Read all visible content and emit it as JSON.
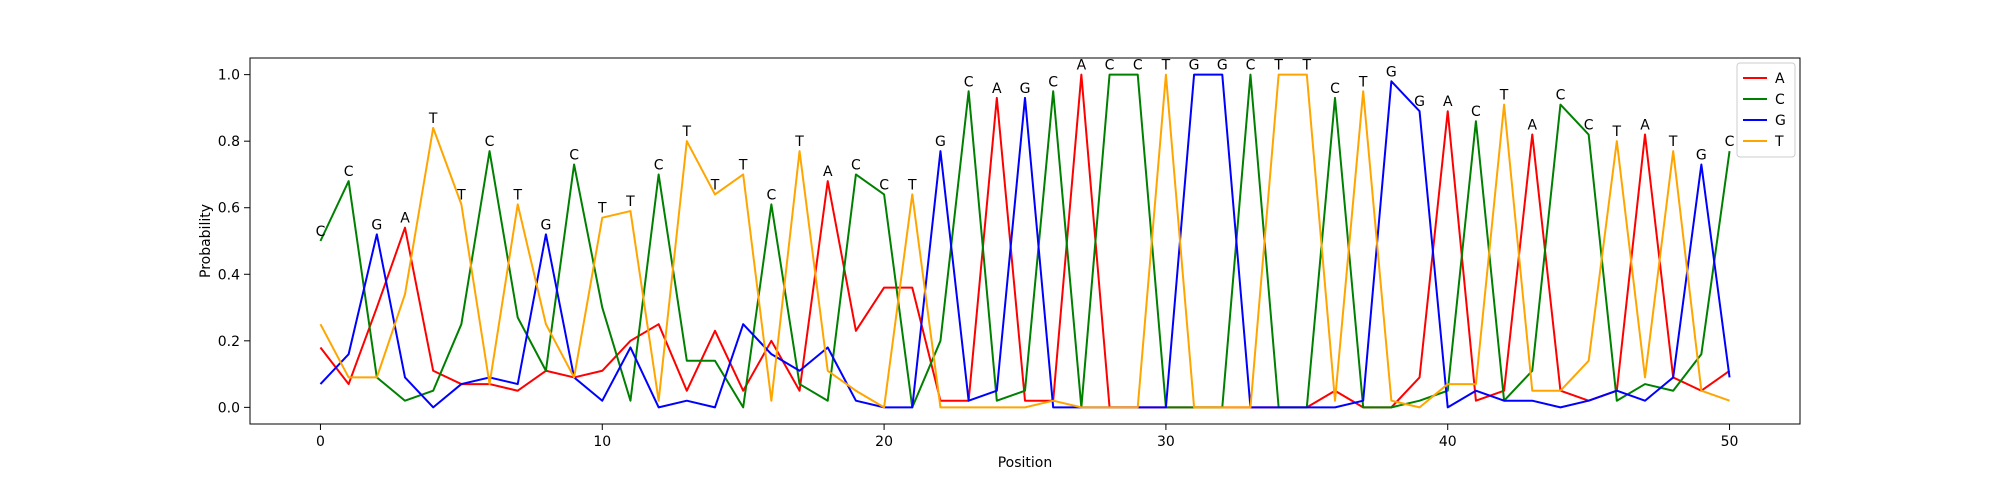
{
  "chart_data": {
    "type": "line",
    "title": "",
    "xlabel": "Position",
    "ylabel": "Probability",
    "xlim": [
      -2.5,
      52.5
    ],
    "ylim": [
      -0.05,
      1.05
    ],
    "xticks": [
      0,
      10,
      20,
      30,
      40,
      50
    ],
    "yticks": [
      0.0,
      0.2,
      0.4,
      0.6,
      0.8,
      1.0
    ],
    "ytick_labels": [
      "0.0",
      "0.2",
      "0.4",
      "0.6",
      "0.8",
      "1.0"
    ],
    "grid": false,
    "legend_position": "top-right",
    "x": [
      0,
      1,
      2,
      3,
      4,
      5,
      6,
      7,
      8,
      9,
      10,
      11,
      12,
      13,
      14,
      15,
      16,
      17,
      18,
      19,
      20,
      21,
      22,
      23,
      24,
      25,
      26,
      27,
      28,
      29,
      30,
      31,
      32,
      33,
      34,
      35,
      36,
      37,
      38,
      39,
      40,
      41,
      42,
      43,
      44,
      45,
      46,
      47,
      48,
      49,
      50
    ],
    "series": [
      {
        "name": "A",
        "color": "#ff0000",
        "values": [
          0.18,
          0.07,
          0.3,
          0.54,
          0.11,
          0.07,
          0.07,
          0.05,
          0.11,
          0.09,
          0.11,
          0.2,
          0.25,
          0.05,
          0.23,
          0.05,
          0.2,
          0.05,
          0.68,
          0.23,
          0.36,
          0.36,
          0.02,
          0.02,
          0.93,
          0.02,
          0.02,
          1.0,
          0.0,
          0.0,
          0.0,
          0.0,
          0.0,
          0.0,
          0.0,
          0.0,
          0.05,
          0.0,
          0.0,
          0.09,
          0.89,
          0.02,
          0.05,
          0.82,
          0.05,
          0.02,
          0.05,
          0.82,
          0.09,
          0.05,
          0.11
        ]
      },
      {
        "name": "C",
        "color": "#008000",
        "values": [
          0.5,
          0.68,
          0.09,
          0.02,
          0.05,
          0.25,
          0.77,
          0.27,
          0.11,
          0.73,
          0.3,
          0.02,
          0.7,
          0.14,
          0.14,
          0.0,
          0.61,
          0.07,
          0.02,
          0.7,
          0.64,
          0.0,
          0.2,
          0.95,
          0.02,
          0.05,
          0.95,
          0.0,
          1.0,
          1.0,
          0.0,
          0.0,
          0.0,
          1.0,
          0.0,
          0.0,
          0.93,
          0.0,
          0.0,
          0.02,
          0.05,
          0.86,
          0.02,
          0.11,
          0.91,
          0.82,
          0.02,
          0.07,
          0.05,
          0.16,
          0.77
        ]
      },
      {
        "name": "G",
        "color": "#0000ff",
        "values": [
          0.07,
          0.16,
          0.52,
          0.09,
          0.0,
          0.07,
          0.09,
          0.07,
          0.52,
          0.09,
          0.02,
          0.18,
          0.0,
          0.02,
          0.0,
          0.25,
          0.16,
          0.11,
          0.18,
          0.02,
          0.0,
          0.0,
          0.77,
          0.02,
          0.05,
          0.93,
          0.0,
          0.0,
          0.0,
          0.0,
          0.0,
          1.0,
          1.0,
          0.0,
          0.0,
          0.0,
          0.0,
          0.02,
          0.98,
          0.89,
          0.0,
          0.05,
          0.02,
          0.02,
          0.0,
          0.02,
          0.05,
          0.02,
          0.09,
          0.73,
          0.09
        ]
      },
      {
        "name": "T",
        "color": "#ffa500",
        "values": [
          0.25,
          0.09,
          0.09,
          0.34,
          0.84,
          0.61,
          0.07,
          0.61,
          0.25,
          0.09,
          0.57,
          0.59,
          0.02,
          0.8,
          0.64,
          0.7,
          0.02,
          0.77,
          0.11,
          0.05,
          0.0,
          0.64,
          0.0,
          0.0,
          0.0,
          0.0,
          0.02,
          0.0,
          0.0,
          0.0,
          1.0,
          0.0,
          0.0,
          0.0,
          1.0,
          1.0,
          0.02,
          0.95,
          0.02,
          0.0,
          0.07,
          0.07,
          0.91,
          0.05,
          0.05,
          0.14,
          0.8,
          0.09,
          0.77,
          0.05,
          0.02
        ]
      }
    ],
    "peak_labels": [
      "C",
      "C",
      "G",
      "A",
      "T",
      "T",
      "C",
      "T",
      "G",
      "C",
      "T",
      "T",
      "C",
      "T",
      "T",
      "T",
      "C",
      "T",
      "A",
      "C",
      "C",
      "T",
      "G",
      "C",
      "A",
      "G",
      "C",
      "A",
      "C",
      "C",
      "T",
      "G",
      "G",
      "C",
      "T",
      "T",
      "C",
      "T",
      "G",
      "G",
      "A",
      "C",
      "T",
      "A",
      "C",
      "C",
      "T",
      "A",
      "T",
      "G",
      "C"
    ]
  }
}
